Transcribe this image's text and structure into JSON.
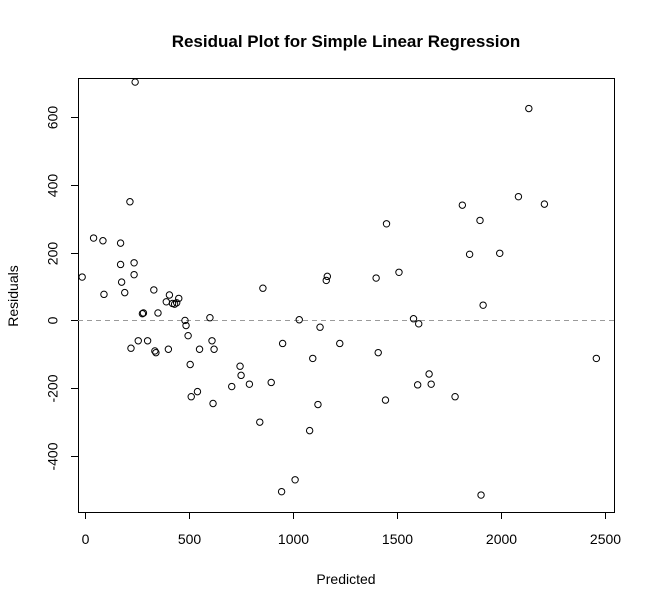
{
  "chart_data": {
    "type": "scatter",
    "title": "Residual Plot for Simple Linear Regression",
    "xlabel": "Predicted",
    "ylabel": "Residuals",
    "xlim": [
      -35,
      2545
    ],
    "ylim": [
      -565,
      715
    ],
    "x_ticks": [
      0,
      500,
      1000,
      1500,
      2000,
      2500
    ],
    "y_ticks": [
      -400,
      -200,
      0,
      200,
      400,
      600
    ],
    "x_tick_labels": [
      "0",
      "500",
      "1000",
      "1500",
      "2000",
      "2500"
    ],
    "y_tick_labels": [
      "-400",
      "-200",
      "0",
      "200",
      "400",
      "600"
    ],
    "reference_line": {
      "y": 0,
      "style": "dashed",
      "color": "#9a9a9a"
    },
    "grid": false,
    "legend": "none",
    "points": [
      {
        "x": -15,
        "y": 128
      },
      {
        "x": 40,
        "y": 243
      },
      {
        "x": 85,
        "y": 235
      },
      {
        "x": 90,
        "y": 77
      },
      {
        "x": 170,
        "y": 228
      },
      {
        "x": 170,
        "y": 165
      },
      {
        "x": 175,
        "y": 113
      },
      {
        "x": 190,
        "y": 82
      },
      {
        "x": 215,
        "y": 350
      },
      {
        "x": 220,
        "y": -82
      },
      {
        "x": 235,
        "y": 170
      },
      {
        "x": 235,
        "y": 135
      },
      {
        "x": 240,
        "y": 703
      },
      {
        "x": 255,
        "y": -60
      },
      {
        "x": 275,
        "y": 20
      },
      {
        "x": 280,
        "y": 22
      },
      {
        "x": 300,
        "y": -60
      },
      {
        "x": 330,
        "y": 90
      },
      {
        "x": 335,
        "y": -90
      },
      {
        "x": 340,
        "y": -95
      },
      {
        "x": 350,
        "y": 22
      },
      {
        "x": 390,
        "y": 55
      },
      {
        "x": 400,
        "y": -85
      },
      {
        "x": 405,
        "y": 75
      },
      {
        "x": 420,
        "y": 50
      },
      {
        "x": 430,
        "y": 48
      },
      {
        "x": 440,
        "y": 52
      },
      {
        "x": 450,
        "y": 65
      },
      {
        "x": 480,
        "y": 0
      },
      {
        "x": 485,
        "y": -15
      },
      {
        "x": 495,
        "y": -45
      },
      {
        "x": 505,
        "y": -130
      },
      {
        "x": 510,
        "y": -225
      },
      {
        "x": 540,
        "y": -210
      },
      {
        "x": 550,
        "y": -85
      },
      {
        "x": 600,
        "y": 8
      },
      {
        "x": 610,
        "y": -60
      },
      {
        "x": 615,
        "y": -245
      },
      {
        "x": 620,
        "y": -85
      },
      {
        "x": 705,
        "y": -195
      },
      {
        "x": 745,
        "y": -135
      },
      {
        "x": 750,
        "y": -162
      },
      {
        "x": 790,
        "y": -188
      },
      {
        "x": 840,
        "y": -300
      },
      {
        "x": 855,
        "y": 95
      },
      {
        "x": 895,
        "y": -183
      },
      {
        "x": 945,
        "y": -505
      },
      {
        "x": 950,
        "y": -68
      },
      {
        "x": 1010,
        "y": -470
      },
      {
        "x": 1030,
        "y": 2
      },
      {
        "x": 1080,
        "y": -325
      },
      {
        "x": 1095,
        "y": -112
      },
      {
        "x": 1120,
        "y": -248
      },
      {
        "x": 1130,
        "y": -20
      },
      {
        "x": 1160,
        "y": 118
      },
      {
        "x": 1165,
        "y": 130
      },
      {
        "x": 1225,
        "y": -68
      },
      {
        "x": 1400,
        "y": 125
      },
      {
        "x": 1410,
        "y": -95
      },
      {
        "x": 1445,
        "y": -235
      },
      {
        "x": 1450,
        "y": 285
      },
      {
        "x": 1510,
        "y": 142
      },
      {
        "x": 1580,
        "y": 5
      },
      {
        "x": 1600,
        "y": -190
      },
      {
        "x": 1605,
        "y": -10
      },
      {
        "x": 1655,
        "y": -158
      },
      {
        "x": 1665,
        "y": -188
      },
      {
        "x": 1780,
        "y": -225
      },
      {
        "x": 1815,
        "y": 340
      },
      {
        "x": 1850,
        "y": 195
      },
      {
        "x": 1900,
        "y": 295
      },
      {
        "x": 1905,
        "y": -515
      },
      {
        "x": 1915,
        "y": 45
      },
      {
        "x": 1995,
        "y": 198
      },
      {
        "x": 2085,
        "y": 365
      },
      {
        "x": 2135,
        "y": 625
      },
      {
        "x": 2210,
        "y": 343
      },
      {
        "x": 2460,
        "y": -112
      }
    ]
  }
}
